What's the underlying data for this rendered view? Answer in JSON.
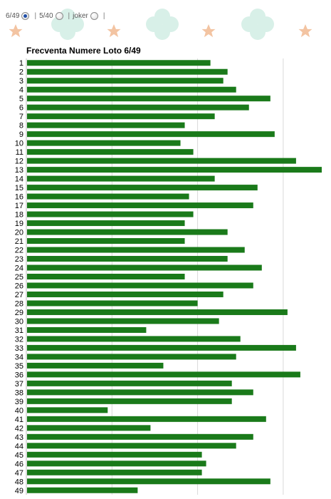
{
  "selector": {
    "options": [
      {
        "label": "6/49",
        "selected": true
      },
      {
        "label": "5/40",
        "selected": false
      },
      {
        "label": "joker",
        "selected": false
      }
    ],
    "separator": "|"
  },
  "colors": {
    "bar": "#1a7a1a",
    "grid": "#d9d9d9",
    "clover": "#d8f0e8",
    "star": "#f3c4a2"
  },
  "chart_data": {
    "type": "bar",
    "orientation": "horizontal",
    "title": "Frecventa Numere Loto 6/49",
    "xlabel": "",
    "ylabel": "",
    "grid": true,
    "xlim": [
      0,
      69
    ],
    "categories": [
      "1",
      "2",
      "3",
      "4",
      "5",
      "6",
      "7",
      "8",
      "9",
      "10",
      "11",
      "12",
      "13",
      "14",
      "15",
      "16",
      "17",
      "18",
      "19",
      "20",
      "21",
      "22",
      "23",
      "24",
      "25",
      "26",
      "27",
      "28",
      "29",
      "30",
      "31",
      "32",
      "33",
      "34",
      "35",
      "36",
      "37",
      "38",
      "39",
      "40",
      "41",
      "42",
      "43",
      "44",
      "45",
      "46",
      "47",
      "48",
      "49"
    ],
    "values": [
      43,
      47,
      46,
      49,
      57,
      52,
      44,
      37,
      58,
      36,
      39,
      63,
      69,
      44,
      54,
      38,
      53,
      39,
      37,
      47,
      37,
      51,
      47,
      55,
      37,
      53,
      46,
      40,
      61,
      45,
      28,
      50,
      63,
      49,
      32,
      64,
      48,
      53,
      48,
      19,
      56,
      29,
      53,
      49,
      41,
      42,
      41,
      57,
      26
    ]
  }
}
